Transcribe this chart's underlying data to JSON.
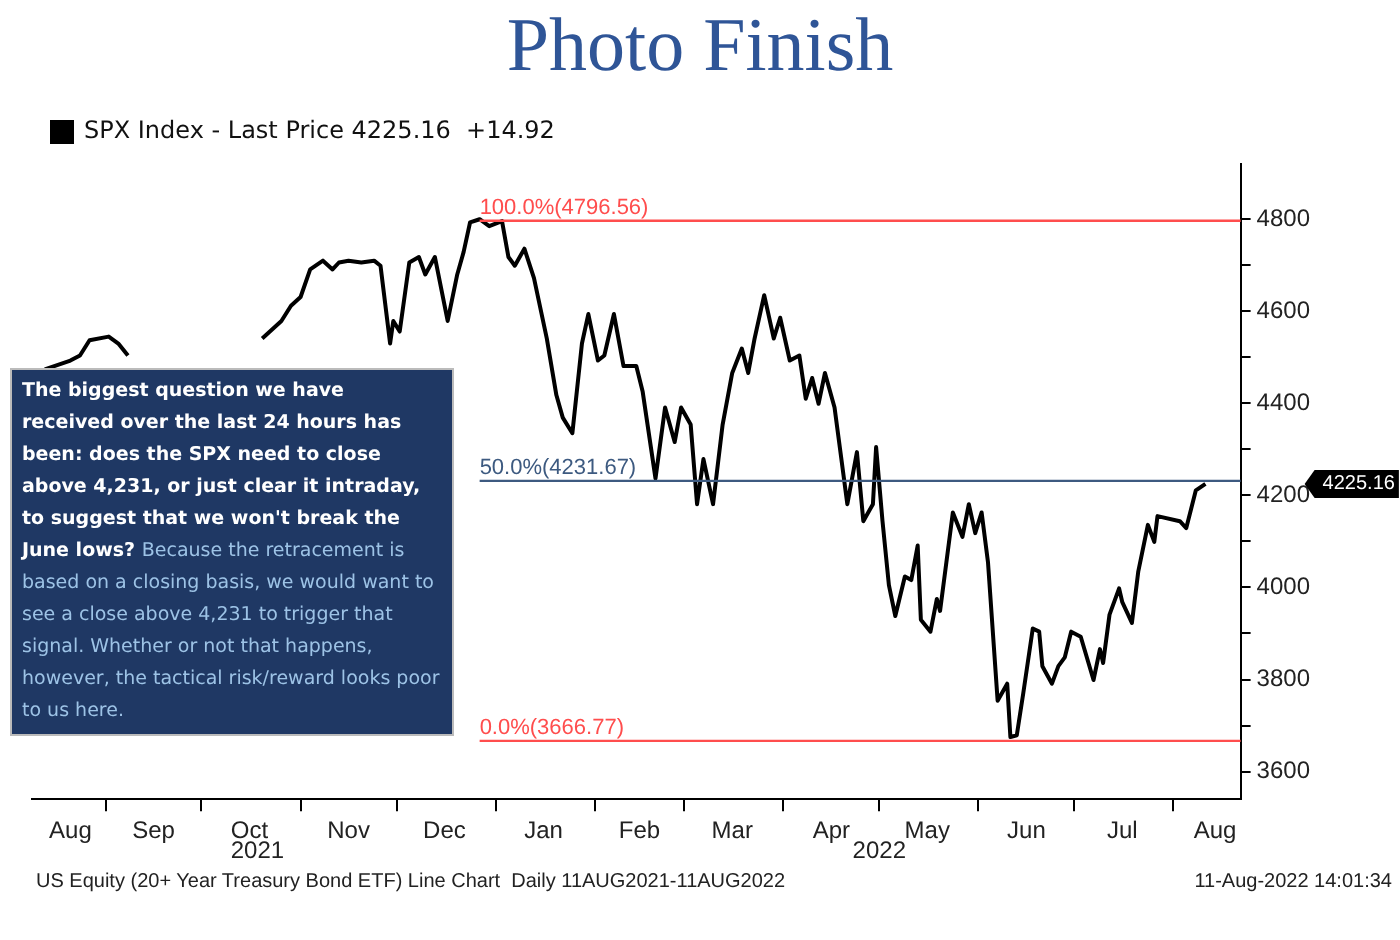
{
  "chart_data": {
    "type": "line",
    "title": "Photo Finish",
    "x": [
      "2021-08-13",
      "2021-08-21",
      "2021-08-24",
      "2021-08-27",
      "2021-09-02",
      "2021-09-05",
      "2021-09-08",
      "2021-09-11",
      "2021-09-14",
      "2021-09-30",
      "2021-10-15",
      "2021-10-20",
      "2021-10-26",
      "2021-10-29",
      "2021-11-01",
      "2021-11-04",
      "2021-11-08",
      "2021-11-11",
      "2021-11-13",
      "2021-11-16",
      "2021-11-20",
      "2021-11-24",
      "2021-11-26",
      "2021-11-29",
      "2021-11-30",
      "2021-12-02",
      "2021-12-05",
      "2021-12-08",
      "2021-12-10",
      "2021-12-13",
      "2021-12-17",
      "2021-12-20",
      "2021-12-22",
      "2021-12-24",
      "2021-12-27",
      "2021-12-30",
      "2022-01-03",
      "2022-01-05",
      "2022-01-07",
      "2022-01-10",
      "2022-01-13",
      "2022-01-17",
      "2022-01-20",
      "2022-01-22",
      "2022-01-25",
      "2022-01-28",
      "2022-01-30",
      "2022-02-02",
      "2022-02-04",
      "2022-02-07",
      "2022-02-10",
      "2022-02-14",
      "2022-02-16",
      "2022-02-20",
      "2022-02-23",
      "2022-02-26",
      "2022-02-28",
      "2022-03-03",
      "2022-03-05",
      "2022-03-07",
      "2022-03-10",
      "2022-03-13",
      "2022-03-16",
      "2022-03-19",
      "2022-03-21",
      "2022-03-23",
      "2022-03-26",
      "2022-03-29",
      "2022-03-31",
      "2022-04-03",
      "2022-04-06",
      "2022-04-08",
      "2022-04-10",
      "2022-04-12",
      "2022-04-14",
      "2022-04-17",
      "2022-04-19",
      "2022-04-21",
      "2022-04-24",
      "2022-04-26",
      "2022-04-29",
      "2022-04-30",
      "2022-05-02",
      "2022-05-04",
      "2022-05-06",
      "2022-05-09",
      "2022-05-11",
      "2022-05-13",
      "2022-05-14",
      "2022-05-17",
      "2022-05-19",
      "2022-05-20",
      "2022-05-24",
      "2022-05-27",
      "2022-05-29",
      "2022-05-31",
      "2022-06-02",
      "2022-06-04",
      "2022-06-07",
      "2022-06-10",
      "2022-06-11",
      "2022-06-13",
      "2022-06-15",
      "2022-06-18",
      "2022-06-20",
      "2022-06-21",
      "2022-06-24",
      "2022-06-26",
      "2022-06-28",
      "2022-06-30",
      "2022-07-03",
      "2022-07-07",
      "2022-07-09",
      "2022-07-10",
      "2022-07-12",
      "2022-07-15",
      "2022-07-16",
      "2022-07-19",
      "2022-07-21",
      "2022-07-24",
      "2022-07-26",
      "2022-07-27",
      "2022-08-03",
      "2022-08-05",
      "2022-08-08",
      "2022-08-11"
    ],
    "series": [
      {
        "name": "SPX Index - Last Price 4225.16  +14.92",
        "color": "#000000",
        "values": [
          4474,
          4493,
          4504,
          4537,
          4545,
          4530,
          4504,
          null,
          null,
          null,
          null,
          4541,
          4579,
          4612,
          4631,
          4691,
          4710,
          4691,
          4706,
          4710,
          4706,
          4710,
          4699,
          4530,
          4579,
          4556,
          4706,
          4718,
          4680,
          4718,
          4579,
          4680,
          4729,
          4793,
          4800,
          4785,
          4796,
          4718,
          4699,
          4736,
          4672,
          4541,
          4418,
          4369,
          4335,
          4530,
          4594,
          4493,
          4504,
          4594,
          4481,
          4481,
          4425,
          4237,
          4391,
          4316,
          4391,
          4354,
          4181,
          4279,
          4181,
          4354,
          4466,
          4519,
          4466,
          4541,
          4635,
          4541,
          4586,
          4493,
          4504,
          4410,
          4455,
          4399,
          4466,
          4391,
          4286,
          4181,
          4294,
          4144,
          4181,
          4305,
          4144,
          4005,
          3938,
          4024,
          4016,
          4091,
          3930,
          3904,
          3975,
          3949,
          4163,
          4110,
          4181,
          4118,
          4163,
          4054,
          3754,
          3791,
          3675,
          3679,
          3769,
          3911,
          3904,
          3829,
          3791,
          3829,
          3848,
          3904,
          3893,
          3799,
          3866,
          3836,
          3941,
          3998,
          3968,
          3923,
          4035,
          4136,
          4099,
          4155,
          4144,
          4129,
          4211,
          4225
        ]
      }
    ],
    "xlim": [
      "2021-08-09",
      "2022-08-22"
    ],
    "xticks": [
      {
        "value": "2021-08-21",
        "label": "Aug"
      },
      {
        "value": "2021-09-01",
        "label": null
      },
      {
        "value": "2021-09-16",
        "label": "Sep"
      },
      {
        "value": "2021-10-01",
        "label": null
      },
      {
        "value": "2021-10-16",
        "label": "Oct"
      },
      {
        "value": "2021-11-01",
        "label": null
      },
      {
        "value": "2021-11-16",
        "label": "Nov"
      },
      {
        "value": "2021-12-01",
        "label": null
      },
      {
        "value": "2021-12-16",
        "label": "Dec"
      },
      {
        "value": "2022-01-01",
        "label": null
      },
      {
        "value": "2022-01-16",
        "label": "Jan"
      },
      {
        "value": "2022-02-01",
        "label": null
      },
      {
        "value": "2022-02-15",
        "label": "Feb"
      },
      {
        "value": "2022-03-01",
        "label": null
      },
      {
        "value": "2022-03-16",
        "label": "Mar"
      },
      {
        "value": "2022-04-01",
        "label": null
      },
      {
        "value": "2022-04-16",
        "label": "Apr"
      },
      {
        "value": "2022-05-01",
        "label": null
      },
      {
        "value": "2022-05-16",
        "label": "May"
      },
      {
        "value": "2022-06-01",
        "label": null
      },
      {
        "value": "2022-06-16",
        "label": "Jun"
      },
      {
        "value": "2022-07-01",
        "label": null
      },
      {
        "value": "2022-07-16",
        "label": "Jul"
      },
      {
        "value": "2022-08-01",
        "label": null
      },
      {
        "value": "2022-08-14",
        "label": "Aug"
      }
    ],
    "ylim": [
      3540,
      4920
    ],
    "yticks": [
      3600,
      {
        "value": 3700,
        "label": null
      },
      3800,
      {
        "value": 3900,
        "label": null
      },
      4000,
      {
        "value": 4100,
        "label": null
      },
      4200,
      {
        "value": 4300,
        "label": null
      },
      4400,
      {
        "value": 4500,
        "label": null
      },
      4600,
      {
        "value": 4700,
        "label": null
      },
      4800
    ],
    "ref_lines": [
      {
        "axis": "y",
        "value": 4796.56,
        "label": "100.0%(4796.56)",
        "color": "#ff4d4d"
      },
      {
        "axis": "y",
        "value": 4231.67,
        "label": "50.0%(4231.67)",
        "color": "#3d5a80"
      },
      {
        "axis": "y",
        "value": 3666.77,
        "label": "0.0%(3666.77)",
        "color": "#ff4d4d"
      }
    ],
    "annotations": [
      "The biggest question we have received over the last 24 hours has been: does the SPX need to close above 4,231, or just clear it intraday, to suggest that we won't break the June lows?",
      "Because the retracement is based on a closing basis, we would want to see a close above 4,231 to trigger that signal. Whether or not that happens, however, the tactical risk/reward looks poor to us here.",
      "4225.16",
      "2021",
      "2022",
      "US Equity (20+ Year Treasury Bond ETF) Line Chart  Daily 11AUG2021-11AUG2022",
      "11-Aug-2022 14:01:34"
    ],
    "grid": false,
    "legend": "top left",
    "marker": "none",
    "line_style": "solid"
  }
}
